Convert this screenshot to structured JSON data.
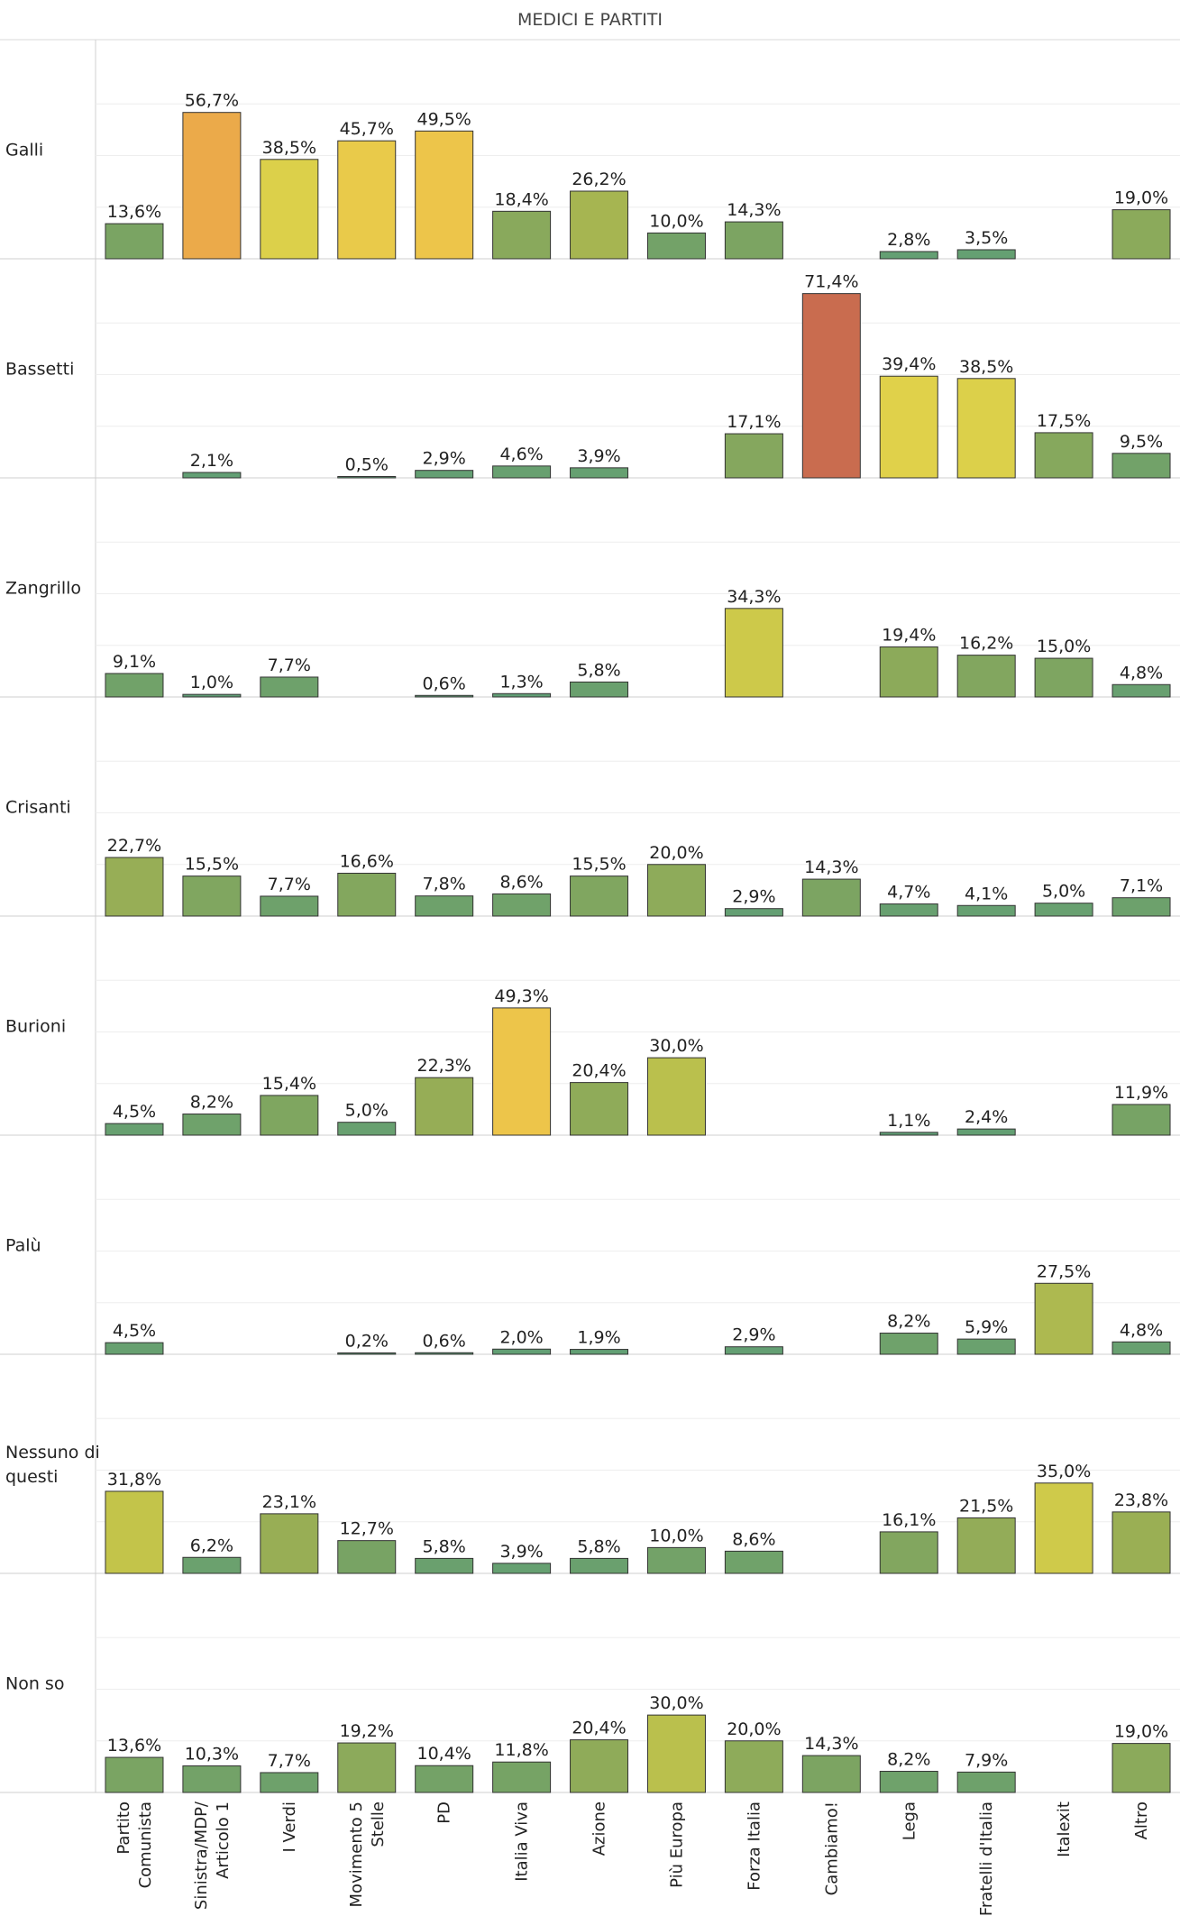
{
  "chart_data": {
    "type": "bar",
    "title": "MEDICI E PARTITI",
    "categories": [
      "Partito Comunista",
      "Sinistra/MDP/ Articolo 1",
      "I Verdi",
      "Movimento 5 Stelle",
      "PD",
      "Italia Viva",
      "Azione",
      "Più Europa",
      "Forza Italia",
      "Cambiamo!",
      "Lega",
      "Fratelli d'Italia",
      "Italexit",
      "Altro"
    ],
    "category_lines": [
      [
        "Partito",
        "Comunista"
      ],
      [
        "Sinistra/MDP/",
        "Articolo 1"
      ],
      [
        "I Verdi"
      ],
      [
        "Movimento 5",
        "Stelle"
      ],
      [
        "PD"
      ],
      [
        "Italia Viva"
      ],
      [
        "Azione"
      ],
      [
        "Più Europa"
      ],
      [
        "Forza Italia"
      ],
      [
        "Cambiamo!"
      ],
      [
        "Lega"
      ],
      [
        "Fratelli d'Italia"
      ],
      [
        "Italexit"
      ],
      [
        "Altro"
      ]
    ],
    "rows": [
      {
        "label_lines": [
          "Galli"
        ],
        "values": [
          13.6,
          56.7,
          38.5,
          45.7,
          49.5,
          18.4,
          26.2,
          10.0,
          14.3,
          null,
          2.8,
          3.5,
          null,
          19.0
        ]
      },
      {
        "label_lines": [
          "Bassetti"
        ],
        "values": [
          null,
          2.1,
          null,
          0.5,
          2.9,
          4.6,
          3.9,
          null,
          17.1,
          71.4,
          39.4,
          38.5,
          17.5,
          9.5
        ]
      },
      {
        "label_lines": [
          "Zangrillo"
        ],
        "values": [
          9.1,
          1.0,
          7.7,
          null,
          0.6,
          1.3,
          5.8,
          null,
          34.3,
          null,
          19.4,
          16.2,
          15.0,
          4.8
        ]
      },
      {
        "label_lines": [
          "Crisanti"
        ],
        "values": [
          22.7,
          15.5,
          7.7,
          16.6,
          7.8,
          8.6,
          15.5,
          20.0,
          2.9,
          14.3,
          4.7,
          4.1,
          5.0,
          7.1
        ]
      },
      {
        "label_lines": [
          "Burioni"
        ],
        "values": [
          4.5,
          8.2,
          15.4,
          5.0,
          22.3,
          49.3,
          20.4,
          30.0,
          null,
          null,
          1.1,
          2.4,
          null,
          11.9
        ]
      },
      {
        "label_lines": [
          "Palù"
        ],
        "values": [
          4.5,
          null,
          null,
          0.2,
          0.6,
          2.0,
          1.9,
          null,
          2.9,
          null,
          8.2,
          5.9,
          27.5,
          4.8
        ]
      },
      {
        "label_lines": [
          "Nessuno di",
          "questi"
        ],
        "values": [
          31.8,
          6.2,
          23.1,
          12.7,
          5.8,
          3.9,
          5.8,
          10.0,
          8.6,
          null,
          16.1,
          21.5,
          35.0,
          23.8
        ]
      },
      {
        "label_lines": [
          "Non so"
        ],
        "values": [
          13.6,
          10.3,
          7.7,
          19.2,
          10.4,
          11.8,
          20.4,
          30.0,
          20.0,
          14.3,
          8.2,
          7.9,
          null,
          19.0
        ]
      }
    ],
    "value_suffix": "%",
    "decimal_separator": ",",
    "ylim": [
      0,
      80
    ],
    "grid": true,
    "legend": "none",
    "color_scale": [
      "#5e9e77",
      "#8bab59",
      "#c3c54a",
      "#e2d24a",
      "#eec44a",
      "#eba94a",
      "#c8694f"
    ]
  }
}
